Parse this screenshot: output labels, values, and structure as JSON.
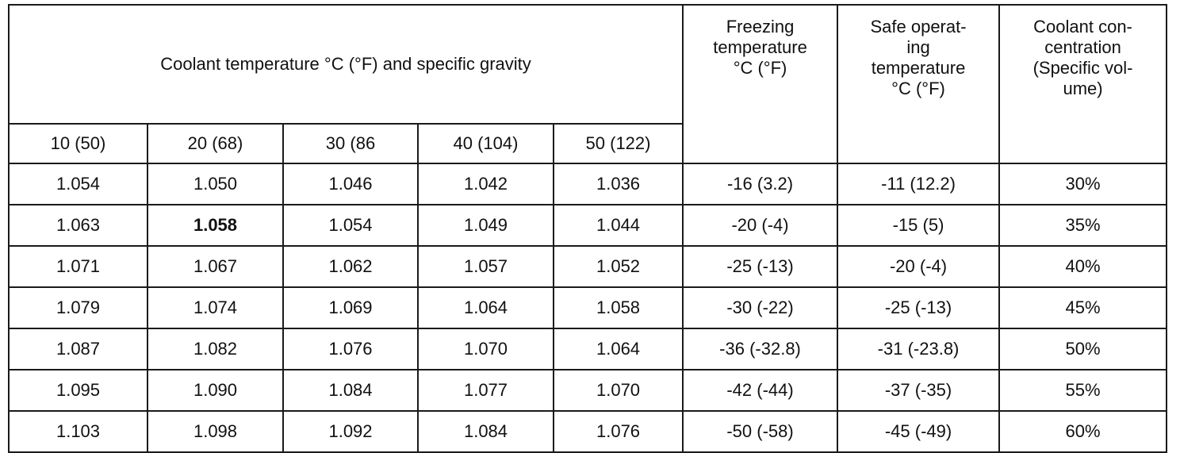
{
  "table": {
    "header": {
      "main": "Coolant temperature °C (°F) and specific gravity",
      "freezing": [
        "Freezing",
        "temperature",
        "°C (°F)"
      ],
      "safe": [
        "Safe operat-",
        "ing",
        "temperature",
        "°C (°F)"
      ],
      "concentration": [
        "Coolant con-",
        "centration",
        "(Specific vol-",
        "ume)"
      ]
    },
    "temps": [
      "10 (50)",
      "20 (68)",
      "30 (86",
      "40 (104)",
      "50 (122)"
    ],
    "rows": [
      {
        "sg": [
          "1.054",
          "1.050",
          "1.046",
          "1.042",
          "1.036"
        ],
        "freezing": "-16 (3.2)",
        "safe": "-11 (12.2)",
        "concentration": "30%"
      },
      {
        "sg": [
          "1.063",
          "1.058",
          "1.054",
          "1.049",
          "1.044"
        ],
        "freezing": "-20 (-4)",
        "safe": "-15 (5)",
        "concentration": "35%"
      },
      {
        "sg": [
          "1.071",
          "1.067",
          "1.062",
          "1.057",
          "1.052"
        ],
        "freezing": "-25 (-13)",
        "safe": "-20 (-4)",
        "concentration": "40%"
      },
      {
        "sg": [
          "1.079",
          "1.074",
          "1.069",
          "1.064",
          "1.058"
        ],
        "freezing": "-30 (-22)",
        "safe": "-25 (-13)",
        "concentration": "45%"
      },
      {
        "sg": [
          "1.087",
          "1.082",
          "1.076",
          "1.070",
          "1.064"
        ],
        "freezing": "-36 (-32.8)",
        "safe": "-31 (-23.8)",
        "concentration": "50%"
      },
      {
        "sg": [
          "1.095",
          "1.090",
          "1.084",
          "1.077",
          "1.070"
        ],
        "freezing": "-42 (-44)",
        "safe": "-37 (-35)",
        "concentration": "55%"
      },
      {
        "sg": [
          "1.103",
          "1.098",
          "1.092",
          "1.084",
          "1.076"
        ],
        "freezing": "-50 (-58)",
        "safe": "-45 (-49)",
        "concentration": "60%"
      }
    ]
  }
}
